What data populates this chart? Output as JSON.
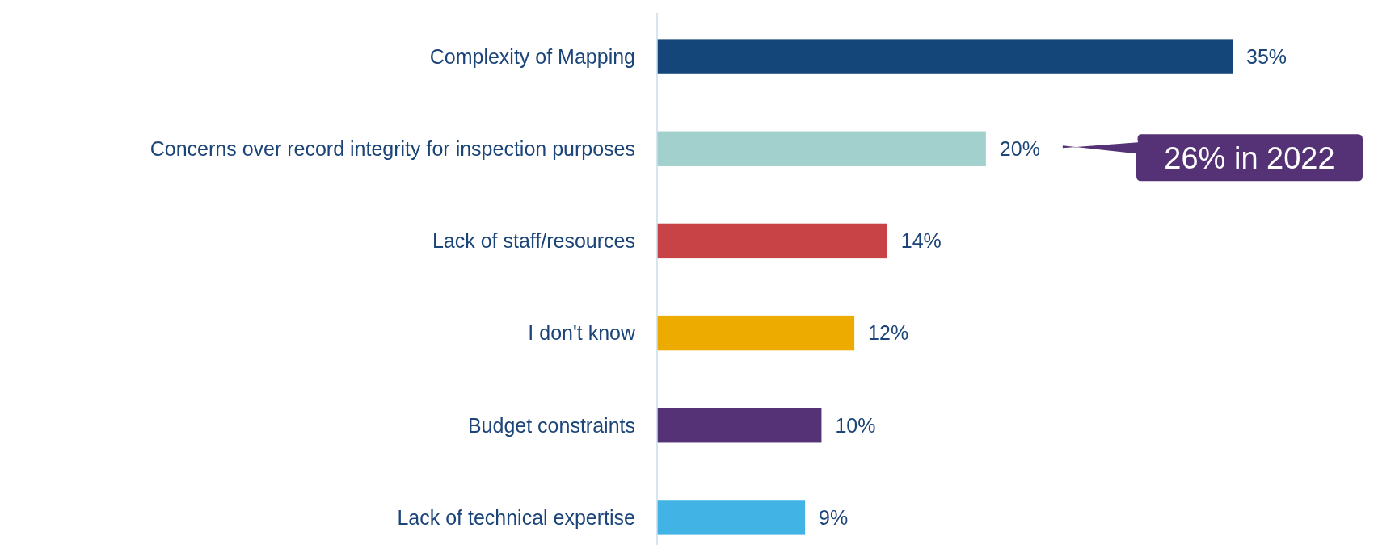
{
  "chart_data": {
    "type": "bar",
    "orientation": "horizontal",
    "categories": [
      "Complexity of Mapping",
      "Concerns over record integrity for inspection purposes",
      "Lack of staff/resources",
      "I don't know",
      "Budget constraints",
      "Lack of technical expertise"
    ],
    "values": [
      35,
      20,
      14,
      12,
      10,
      9
    ],
    "colors": [
      "#14467a",
      "#a2d0cc",
      "#c84345",
      "#edab00",
      "#553275",
      "#41b3e4"
    ],
    "value_labels": [
      "35%",
      "20%",
      "14%",
      "12%",
      "10%",
      "9%"
    ],
    "annotations": [
      "26% in 2022"
    ]
  }
}
